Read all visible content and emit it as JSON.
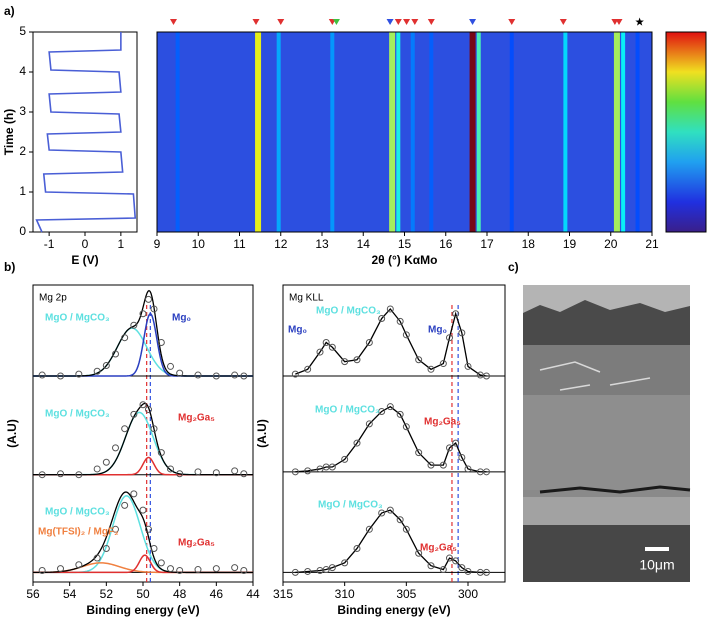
{
  "panel_labels": [
    "a)",
    "b)",
    "c)"
  ],
  "chart_data": [
    {
      "type": "line",
      "xlabel": "E (V)",
      "ylabel": "Time (h)",
      "xlim": [
        -1.45,
        1.45
      ],
      "xticks": [
        -1,
        0,
        1
      ],
      "ylim": [
        0,
        5
      ],
      "yticks": [
        0,
        1,
        2,
        3,
        4,
        5
      ],
      "series": [
        {
          "color": "#4a5fd6",
          "x": [
            -1.2,
            -1.35,
            1.4,
            1.35,
            -1.1,
            -1.15,
            1.05,
            1.0,
            -1.0,
            -1.05,
            1.0,
            0.95,
            -0.95,
            -1.0,
            1.0,
            0.95,
            -0.95,
            -1.0,
            1.0,
            1.0
          ],
          "values": [
            0,
            0.3,
            0.35,
            0.95,
            1.0,
            1.45,
            1.5,
            2.0,
            2.05,
            2.45,
            2.5,
            2.95,
            3.0,
            3.45,
            3.5,
            4.0,
            4.05,
            4.5,
            4.55,
            5.0
          ]
        }
      ]
    },
    {
      "type": "heatmap",
      "xlabel": "2θ (°) KαMo",
      "xlim": [
        9,
        21
      ],
      "xticks": [
        9,
        10,
        11,
        12,
        13,
        14,
        15,
        16,
        17,
        18,
        19,
        20,
        21
      ],
      "background_color": "#2c4fe0",
      "colorbar_range": [
        0,
        1
      ],
      "stripes": {
        "x": [
          9.5,
          11.45,
          11.95,
          13.25,
          14.7,
          14.85,
          15.2,
          15.65,
          16.65,
          16.8,
          17.6,
          18.9,
          20.15,
          20.3,
          20.65
        ],
        "values": [
          0.22,
          0.62,
          0.3,
          0.28,
          0.55,
          0.4,
          0.25,
          0.22,
          1.0,
          0.45,
          0.2,
          0.35,
          0.55,
          0.38,
          0.2
        ]
      },
      "markers": [
        {
          "x": 9.4,
          "color": "#e03030",
          "shape": "triangle"
        },
        {
          "x": 11.4,
          "color": "#e03030",
          "shape": "triangle"
        },
        {
          "x": 12.0,
          "color": "#e03030",
          "shape": "triangle"
        },
        {
          "x": 13.25,
          "color": "#e03030",
          "shape": "triangle"
        },
        {
          "x": 13.35,
          "color": "#40c040",
          "shape": "triangle"
        },
        {
          "x": 14.65,
          "color": "#3050e0",
          "shape": "triangle"
        },
        {
          "x": 14.85,
          "color": "#e03030",
          "shape": "triangle"
        },
        {
          "x": 15.05,
          "color": "#e03030",
          "shape": "triangle"
        },
        {
          "x": 15.25,
          "color": "#e03030",
          "shape": "triangle"
        },
        {
          "x": 15.65,
          "color": "#e03030",
          "shape": "triangle"
        },
        {
          "x": 16.65,
          "color": "#3050e0",
          "shape": "triangle"
        },
        {
          "x": 17.6,
          "color": "#e03030",
          "shape": "triangle"
        },
        {
          "x": 18.85,
          "color": "#e03030",
          "shape": "triangle"
        },
        {
          "x": 20.1,
          "color": "#e03030",
          "shape": "triangle"
        },
        {
          "x": 20.2,
          "color": "#e03030",
          "shape": "triangle"
        },
        {
          "x": 20.7,
          "color": "#000000",
          "shape": "star"
        }
      ]
    },
    {
      "type": "xps",
      "title": "Mg 2p",
      "xlabel": "Binding energy (eV)",
      "ylabel": "(A.U)",
      "xlim": [
        56,
        44
      ],
      "xticks": [
        56,
        54,
        52,
        50,
        48,
        46,
        44
      ],
      "ylim": [
        0,
        3.1
      ],
      "x": [
        55.5,
        54.5,
        53.5,
        52.5,
        52,
        51.5,
        51,
        50.5,
        50,
        49.7,
        49.4,
        49,
        48.5,
        48,
        47,
        46,
        45,
        44.5
      ],
      "ref_lines": [
        {
          "x": 49.8,
          "color": "#e03030"
        },
        {
          "x": 49.6,
          "color": "#3050e0"
        }
      ],
      "spectra": [
        {
          "baseline": 2.15,
          "values": [
            2.16,
            2.15,
            2.17,
            2.2,
            2.26,
            2.38,
            2.55,
            2.68,
            2.8,
            2.95,
            2.85,
            2.5,
            2.25,
            2.18,
            2.16,
            2.15,
            2.16,
            2.15
          ],
          "components": [
            {
              "color": "#5de0e0",
              "center": 50.6,
              "height": 0.5,
              "width": 0.8
            },
            {
              "color": "#2a3fc0",
              "center": 49.6,
              "height": 0.65,
              "width": 0.35
            }
          ],
          "annotations": [
            {
              "text": "MgO / MgCO₃",
              "color": "#5de0e0"
            },
            {
              "text": "Mg₀",
              "color": "#2a3fc0"
            }
          ]
        },
        {
          "baseline": 1.12,
          "values": [
            1.12,
            1.13,
            1.12,
            1.18,
            1.25,
            1.4,
            1.6,
            1.75,
            1.85,
            1.8,
            1.6,
            1.35,
            1.18,
            1.13,
            1.15,
            1.14,
            1.16,
            1.13
          ],
          "components": [
            {
              "color": "#5de0e0",
              "center": 50.2,
              "height": 0.65,
              "width": 0.75
            },
            {
              "color": "#e03030",
              "center": 49.7,
              "height": 0.18,
              "width": 0.3
            }
          ],
          "annotations": [
            {
              "text": "MgO / MgCO₃",
              "color": "#5de0e0"
            },
            {
              "text": "Mg₂Ga₅",
              "color": "#e03030"
            }
          ]
        },
        {
          "baseline": 0.1,
          "values": [
            0.12,
            0.14,
            0.18,
            0.25,
            0.35,
            0.55,
            0.8,
            0.92,
            0.75,
            0.55,
            0.35,
            0.2,
            0.14,
            0.12,
            0.13,
            0.14,
            0.15,
            0.12
          ],
          "components": [
            {
              "color": "#5de0e0",
              "center": 50.9,
              "height": 0.8,
              "width": 0.75
            },
            {
              "color": "#f08040",
              "center": 52.3,
              "height": 0.1,
              "width": 1.0
            },
            {
              "color": "#e03030",
              "center": 49.9,
              "height": 0.18,
              "width": 0.3
            }
          ],
          "annotations": [
            {
              "text": "MgO / MgCO₃",
              "color": "#5de0e0"
            },
            {
              "text": "Mg(TFSI)₂ / MgF₂",
              "color": "#f08040"
            },
            {
              "text": "Mg₂Ga₅",
              "color": "#e03030"
            }
          ]
        }
      ]
    },
    {
      "type": "xps",
      "title": "Mg KLL",
      "xlabel": "Binding energy (eV)",
      "ylabel": "(A.U)",
      "xlim": [
        315,
        297
      ],
      "xticks": [
        315,
        310,
        305,
        300
      ],
      "ylim": [
        0,
        3.1
      ],
      "x": [
        314,
        313,
        312,
        311.5,
        311,
        310,
        309,
        308,
        307,
        306.3,
        305.5,
        305,
        304,
        303,
        302,
        301.5,
        301,
        300.5,
        300,
        299,
        298.5
      ],
      "ref_lines": [
        {
          "x": 301.3,
          "color": "#e03030"
        },
        {
          "x": 300.8,
          "color": "#3050e0"
        }
      ],
      "spectra": [
        {
          "baseline": 2.15,
          "values": [
            2.17,
            2.22,
            2.4,
            2.5,
            2.45,
            2.3,
            2.32,
            2.5,
            2.75,
            2.85,
            2.72,
            2.58,
            2.32,
            2.22,
            2.28,
            2.55,
            2.8,
            2.6,
            2.25,
            2.16,
            2.15
          ],
          "annotations": [
            {
              "text": "Mg₀",
              "color": "#2a3fc0"
            },
            {
              "text": "MgO / MgCO₃",
              "color": "#5de0e0"
            },
            {
              "text": "Mg₀",
              "color": "#2a3fc0"
            }
          ]
        },
        {
          "baseline": 1.15,
          "values": [
            1.15,
            1.16,
            1.18,
            1.2,
            1.2,
            1.28,
            1.45,
            1.65,
            1.78,
            1.83,
            1.75,
            1.62,
            1.35,
            1.22,
            1.22,
            1.4,
            1.45,
            1.3,
            1.18,
            1.15,
            1.15
          ],
          "annotations": [
            {
              "text": "MgO / MgCO₃",
              "color": "#5de0e0"
            },
            {
              "text": "Mg₂Ga₅",
              "color": "#e03030"
            }
          ]
        },
        {
          "baseline": 0.1,
          "values": [
            0.1,
            0.11,
            0.12,
            0.13,
            0.15,
            0.2,
            0.35,
            0.55,
            0.72,
            0.75,
            0.65,
            0.55,
            0.3,
            0.17,
            0.13,
            0.25,
            0.22,
            0.15,
            0.11,
            0.1,
            0.1
          ],
          "annotations": [
            {
              "text": "MgO / MgCO₃",
              "color": "#5de0e0"
            },
            {
              "text": "Mg₂Ga₅",
              "color": "#e03030"
            }
          ]
        }
      ]
    }
  ],
  "image": {
    "scale_bar": "10μm"
  }
}
